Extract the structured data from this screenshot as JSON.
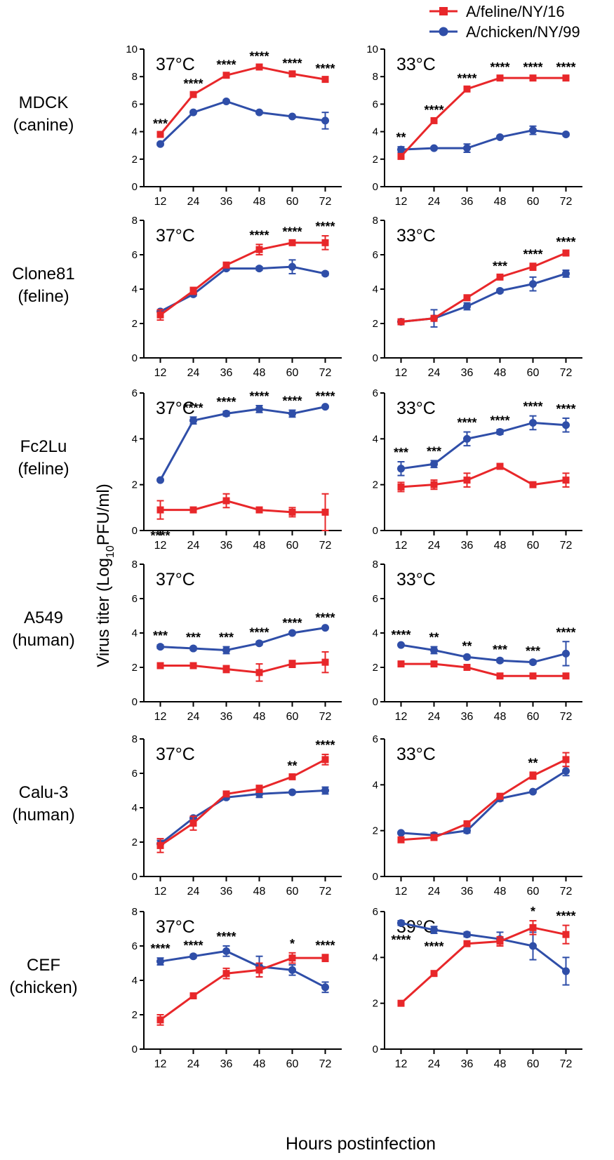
{
  "colors": {
    "feline": "#e8272a",
    "chicken": "#2f4ea8",
    "axis": "#000000"
  },
  "legend": [
    {
      "name": "A/feline/NY/16",
      "marker": "square",
      "color": "#e8272a"
    },
    {
      "name": "A/chicken/NY/99",
      "marker": "circle",
      "color": "#2f4ea8"
    }
  ],
  "ylabel_main": "Virus titer (Log",
  "ylabel_sub": "10",
  "ylabel_tail": "PFU/ml)",
  "xlabel": "Hours postinfection",
  "rows": [
    {
      "line1": "MDCK",
      "line2": "(canine)"
    },
    {
      "line1": "Clone81",
      "line2": "(feline)"
    },
    {
      "line1": "Fc2Lu",
      "line2": "(feline)"
    },
    {
      "line1": "A549",
      "line2": "(human)"
    },
    {
      "line1": "Calu-3",
      "line2": "(human)"
    },
    {
      "line1": "CEF",
      "line2": "(chicken)"
    }
  ],
  "chart_data": [
    {
      "type": "line",
      "row": 0,
      "col": 0,
      "title": "37°C",
      "x": [
        12,
        24,
        36,
        48,
        60,
        72
      ],
      "ylim": [
        0,
        10
      ],
      "yticks": [
        0,
        2,
        4,
        6,
        8,
        10
      ],
      "series": [
        {
          "name": "A/feline/NY/16",
          "values": [
            3.8,
            6.7,
            8.1,
            8.7,
            8.2,
            7.8
          ],
          "err": [
            0.1,
            0.1,
            0.1,
            0.1,
            0.1,
            0.1
          ]
        },
        {
          "name": "A/chicken/NY/99",
          "values": [
            3.1,
            5.4,
            6.2,
            5.4,
            5.1,
            4.8
          ],
          "err": [
            0.1,
            0.1,
            0.1,
            0.1,
            0.1,
            0.6
          ]
        }
      ],
      "sig": [
        "***",
        "****",
        "****",
        "****",
        "****",
        "****"
      ]
    },
    {
      "type": "line",
      "row": 0,
      "col": 1,
      "title": "33°C",
      "x": [
        12,
        24,
        36,
        48,
        60,
        72
      ],
      "ylim": [
        0,
        10
      ],
      "yticks": [
        0,
        2,
        4,
        6,
        8,
        10
      ],
      "series": [
        {
          "name": "A/feline/NY/16",
          "values": [
            2.2,
            4.8,
            7.1,
            7.9,
            7.9,
            7.9
          ],
          "err": [
            0.1,
            0.1,
            0.1,
            0.1,
            0.1,
            0.1
          ]
        },
        {
          "name": "A/chicken/NY/99",
          "values": [
            2.7,
            2.8,
            2.8,
            3.6,
            4.1,
            3.8
          ],
          "err": [
            0.2,
            0.1,
            0.3,
            0.1,
            0.3,
            0.1
          ]
        }
      ],
      "sig": [
        "**",
        "****",
        "****",
        "****",
        "****",
        "****"
      ]
    },
    {
      "type": "line",
      "row": 1,
      "col": 0,
      "title": "37°C",
      "x": [
        12,
        24,
        36,
        48,
        60,
        72
      ],
      "ylim": [
        0,
        8
      ],
      "yticks": [
        0,
        2,
        4,
        6,
        8
      ],
      "series": [
        {
          "name": "A/feline/NY/16",
          "values": [
            2.5,
            3.9,
            5.4,
            6.3,
            6.7,
            6.7
          ],
          "err": [
            0.3,
            0.2,
            0.1,
            0.3,
            0.1,
            0.4
          ]
        },
        {
          "name": "A/chicken/NY/99",
          "values": [
            2.7,
            3.7,
            5.2,
            5.2,
            5.3,
            4.9
          ],
          "err": [
            0.1,
            0.1,
            0.1,
            0.1,
            0.4,
            0.1
          ]
        }
      ],
      "sig": [
        "",
        "",
        "",
        "****",
        "****",
        "****"
      ]
    },
    {
      "type": "line",
      "row": 1,
      "col": 1,
      "title": "33°C",
      "x": [
        12,
        24,
        36,
        48,
        60,
        72
      ],
      "ylim": [
        0,
        8
      ],
      "yticks": [
        0,
        2,
        4,
        6,
        8
      ],
      "series": [
        {
          "name": "A/feline/NY/16",
          "values": [
            2.1,
            2.3,
            3.5,
            4.7,
            5.3,
            6.1
          ],
          "err": [
            0.1,
            0.1,
            0.1,
            0.1,
            0.2,
            0.1
          ]
        },
        {
          "name": "A/chicken/NY/99",
          "values": [
            2.1,
            2.3,
            3.0,
            3.9,
            4.3,
            4.9
          ],
          "err": [
            0.1,
            0.5,
            0.2,
            0.1,
            0.4,
            0.2
          ]
        }
      ],
      "sig": [
        "",
        "",
        "",
        "***",
        "****",
        "****"
      ]
    },
    {
      "type": "line",
      "row": 2,
      "col": 0,
      "title": "37°C",
      "x": [
        12,
        24,
        36,
        48,
        60,
        72
      ],
      "ylim": [
        0,
        6
      ],
      "yticks": [
        0,
        2,
        4,
        6
      ],
      "series": [
        {
          "name": "A/feline/NY/16",
          "values": [
            0.9,
            0.9,
            1.3,
            0.9,
            0.8,
            0.8
          ],
          "err": [
            0.4,
            0.1,
            0.3,
            0.1,
            0.2,
            0.8
          ]
        },
        {
          "name": "A/chicken/NY/99",
          "values": [
            2.2,
            4.8,
            5.1,
            5.3,
            5.1,
            5.4
          ],
          "err": [
            0.05,
            0.15,
            0.1,
            0.15,
            0.15,
            0.05
          ]
        }
      ],
      "sig": [
        "****",
        "****",
        "****",
        "****",
        "****",
        "****"
      ],
      "sig_below_first": true
    },
    {
      "type": "line",
      "row": 2,
      "col": 1,
      "title": "33°C",
      "x": [
        12,
        24,
        36,
        48,
        60,
        72
      ],
      "ylim": [
        0,
        6
      ],
      "yticks": [
        0,
        2,
        4,
        6
      ],
      "series": [
        {
          "name": "A/feline/NY/16",
          "values": [
            1.9,
            2.0,
            2.2,
            2.8,
            2.0,
            2.2
          ],
          "err": [
            0.2,
            0.2,
            0.3,
            0.1,
            0.1,
            0.3
          ]
        },
        {
          "name": "A/chicken/NY/99",
          "values": [
            2.7,
            2.9,
            4.0,
            4.3,
            4.7,
            4.6
          ],
          "err": [
            0.3,
            0.15,
            0.3,
            0.1,
            0.3,
            0.3
          ]
        }
      ],
      "sig": [
        "***",
        "***",
        "****",
        "****",
        "****",
        "****"
      ]
    },
    {
      "type": "line",
      "row": 3,
      "col": 0,
      "title": "37°C",
      "x": [
        12,
        24,
        36,
        48,
        60,
        72
      ],
      "ylim": [
        0,
        8
      ],
      "yticks": [
        0,
        2,
        4,
        6,
        8
      ],
      "series": [
        {
          "name": "A/feline/NY/16",
          "values": [
            2.1,
            2.1,
            1.9,
            1.7,
            2.2,
            2.3
          ],
          "err": [
            0.1,
            0.1,
            0.2,
            0.5,
            0.2,
            0.6
          ]
        },
        {
          "name": "A/chicken/NY/99",
          "values": [
            3.2,
            3.1,
            3.0,
            3.4,
            4.0,
            4.3
          ],
          "err": [
            0.1,
            0.1,
            0.2,
            0.1,
            0.05,
            0.05
          ]
        }
      ],
      "sig": [
        "***",
        "***",
        "***",
        "****",
        "****",
        "****"
      ]
    },
    {
      "type": "line",
      "row": 3,
      "col": 1,
      "title": "33°C",
      "x": [
        12,
        24,
        36,
        48,
        60,
        72
      ],
      "ylim": [
        0,
        8
      ],
      "yticks": [
        0,
        2,
        4,
        6,
        8
      ],
      "series": [
        {
          "name": "A/feline/NY/16",
          "values": [
            2.2,
            2.2,
            2.0,
            1.5,
            1.5,
            1.5
          ],
          "err": [
            0.05,
            0.1,
            0.1,
            0.1,
            0.1,
            0.05
          ]
        },
        {
          "name": "A/chicken/NY/99",
          "values": [
            3.3,
            3.0,
            2.6,
            2.4,
            2.3,
            2.8
          ],
          "err": [
            0.05,
            0.2,
            0.1,
            0.1,
            0.1,
            0.7
          ]
        }
      ],
      "sig": [
        "****",
        "**",
        "**",
        "***",
        "***",
        "****"
      ]
    },
    {
      "type": "line",
      "row": 4,
      "col": 0,
      "title": "37°C",
      "x": [
        12,
        24,
        36,
        48,
        60,
        72
      ],
      "ylim": [
        0,
        8
      ],
      "yticks": [
        0,
        2,
        4,
        6,
        8
      ],
      "series": [
        {
          "name": "A/feline/NY/16",
          "values": [
            1.8,
            3.1,
            4.8,
            5.1,
            5.8,
            6.8
          ],
          "err": [
            0.4,
            0.4,
            0.1,
            0.2,
            0.1,
            0.3
          ]
        },
        {
          "name": "A/chicken/NY/99",
          "values": [
            1.9,
            3.4,
            4.6,
            4.8,
            4.9,
            5.0
          ],
          "err": [
            0.2,
            0.1,
            0.1,
            0.2,
            0.05,
            0.2
          ]
        }
      ],
      "sig": [
        "",
        "",
        "",
        "",
        "**",
        "****"
      ]
    },
    {
      "type": "line",
      "row": 4,
      "col": 1,
      "title": "33°C",
      "x": [
        12,
        24,
        36,
        48,
        60,
        72
      ],
      "ylim": [
        0,
        6
      ],
      "yticks": [
        0,
        2,
        4,
        6
      ],
      "series": [
        {
          "name": "A/feline/NY/16",
          "values": [
            1.6,
            1.7,
            2.3,
            3.5,
            4.4,
            5.1
          ],
          "err": [
            0.05,
            0.1,
            0.1,
            0.1,
            0.15,
            0.3
          ]
        },
        {
          "name": "A/chicken/NY/99",
          "values": [
            1.9,
            1.8,
            2.0,
            3.4,
            3.7,
            4.6
          ],
          "err": [
            0.05,
            0.1,
            0.1,
            0.1,
            0.05,
            0.2
          ]
        }
      ],
      "sig": [
        "",
        "",
        "",
        "",
        "**",
        ""
      ]
    },
    {
      "type": "line",
      "row": 5,
      "col": 0,
      "title": "37°C",
      "x": [
        12,
        24,
        36,
        48,
        60,
        72
      ],
      "ylim": [
        0,
        8
      ],
      "yticks": [
        0,
        2,
        4,
        6,
        8
      ],
      "series": [
        {
          "name": "A/feline/NY/16",
          "values": [
            1.7,
            3.1,
            4.4,
            4.6,
            5.3,
            5.3
          ],
          "err": [
            0.3,
            0.1,
            0.3,
            0.4,
            0.3,
            0.2
          ]
        },
        {
          "name": "A/chicken/NY/99",
          "values": [
            5.1,
            5.4,
            5.7,
            4.8,
            4.6,
            3.6
          ],
          "err": [
            0.2,
            0.1,
            0.3,
            0.6,
            0.3,
            0.3
          ]
        }
      ],
      "sig": [
        "****",
        "****",
        "****",
        "",
        "*",
        "****"
      ]
    },
    {
      "type": "line",
      "row": 5,
      "col": 1,
      "title": "39°C",
      "x": [
        12,
        24,
        36,
        48,
        60,
        72
      ],
      "ylim": [
        0,
        6
      ],
      "yticks": [
        0,
        2,
        4,
        6
      ],
      "series": [
        {
          "name": "A/feline/NY/16",
          "values": [
            2.0,
            3.3,
            4.6,
            4.7,
            5.3,
            5.0
          ],
          "err": [
            0.05,
            0.1,
            0.05,
            0.2,
            0.3,
            0.4
          ]
        },
        {
          "name": "A/chicken/NY/99",
          "values": [
            5.5,
            5.2,
            5.0,
            4.8,
            4.5,
            3.4
          ],
          "err": [
            0.1,
            0.15,
            0.1,
            0.3,
            0.6,
            0.6
          ]
        }
      ],
      "sig": [
        "****",
        "****",
        "",
        "",
        "*",
        "****"
      ],
      "sig_below_first": true,
      "sig_below_second": true
    }
  ]
}
